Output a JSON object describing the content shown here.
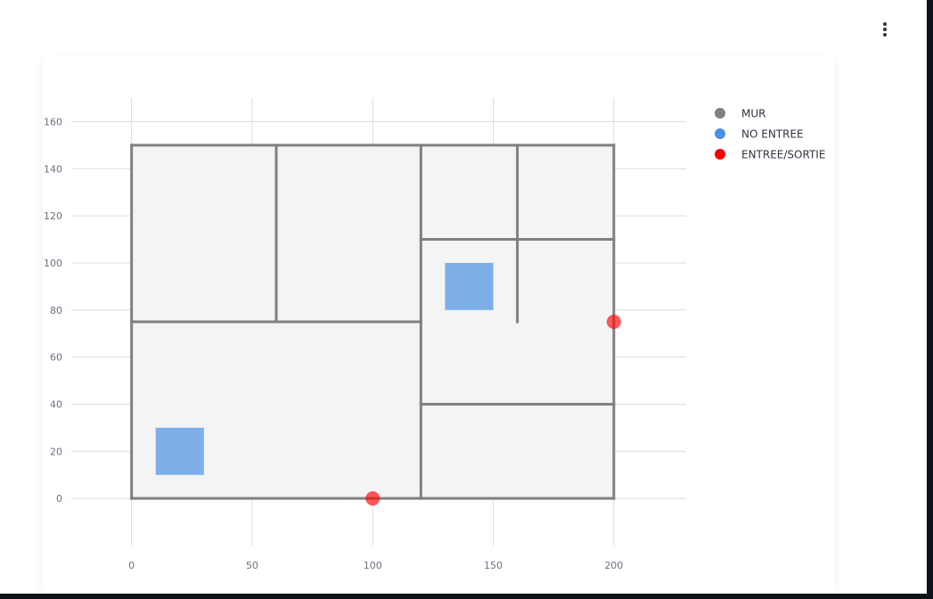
{
  "chart_data": {
    "type": "scatter",
    "title": "",
    "xlabel": "",
    "ylabel": "",
    "xlim": [
      -25,
      230
    ],
    "ylim": [
      -20,
      170
    ],
    "x_ticks": [
      0,
      50,
      100,
      150,
      200
    ],
    "y_ticks": [
      0,
      20,
      40,
      60,
      80,
      100,
      120,
      140,
      160
    ],
    "grid": true,
    "legend_position": "top-right",
    "floor": {
      "x0": 0,
      "x1": 200,
      "y0": 0,
      "y1": 150,
      "color": "#f4f4f4"
    },
    "series": [
      {
        "name": "MUR",
        "color": "#808080",
        "segments": [
          [
            [
              0,
              0
            ],
            [
              200,
              0
            ]
          ],
          [
            [
              200,
              0
            ],
            [
              200,
              150
            ]
          ],
          [
            [
              200,
              150
            ],
            [
              0,
              150
            ]
          ],
          [
            [
              0,
              150
            ],
            [
              0,
              0
            ]
          ],
          [
            [
              0,
              75
            ],
            [
              120,
              75
            ]
          ],
          [
            [
              60,
              75
            ],
            [
              60,
              150
            ]
          ],
          [
            [
              120,
              0
            ],
            [
              120,
              150
            ]
          ],
          [
            [
              120,
              110
            ],
            [
              200,
              110
            ]
          ],
          [
            [
              160,
              110
            ],
            [
              160,
              150
            ]
          ],
          [
            [
              160,
              75
            ],
            [
              160,
              110
            ]
          ],
          [
            [
              120,
              40
            ],
            [
              200,
              40
            ]
          ]
        ]
      },
      {
        "name": "NO ENTREE",
        "color": "#4a90e2",
        "rects": [
          {
            "x0": 10,
            "y0": 10,
            "x1": 30,
            "y1": 30
          },
          {
            "x0": 130,
            "y0": 80,
            "x1": 150,
            "y1": 100
          }
        ]
      },
      {
        "name": "ENTREE/SORTIE",
        "color": "#ff0000",
        "points": [
          [
            100,
            0
          ],
          [
            200,
            75
          ]
        ]
      }
    ]
  }
}
